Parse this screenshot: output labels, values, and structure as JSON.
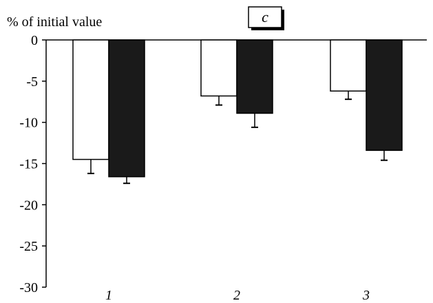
{
  "chart_data": {
    "type": "bar",
    "ylabel": "% of initial value",
    "panel_label": "c",
    "categories": [
      "1",
      "2",
      "3"
    ],
    "ylim": [
      -30,
      0
    ],
    "yticks": [
      0,
      -5,
      -10,
      -15,
      -20,
      -25,
      -30
    ],
    "ytick_labels": [
      "0",
      "-5",
      "-10",
      "-15",
      "-20",
      "-25",
      "-30"
    ],
    "grid": false,
    "series": [
      {
        "fill": "#ffffff",
        "values": [
          -14.5,
          -6.8,
          -6.2
        ],
        "errors": [
          1.7,
          1.1,
          1.0
        ]
      },
      {
        "fill": "#1a1a1a",
        "values": [
          -16.6,
          -8.9,
          -13.4
        ],
        "errors": [
          0.8,
          1.7,
          1.2
        ]
      }
    ]
  }
}
